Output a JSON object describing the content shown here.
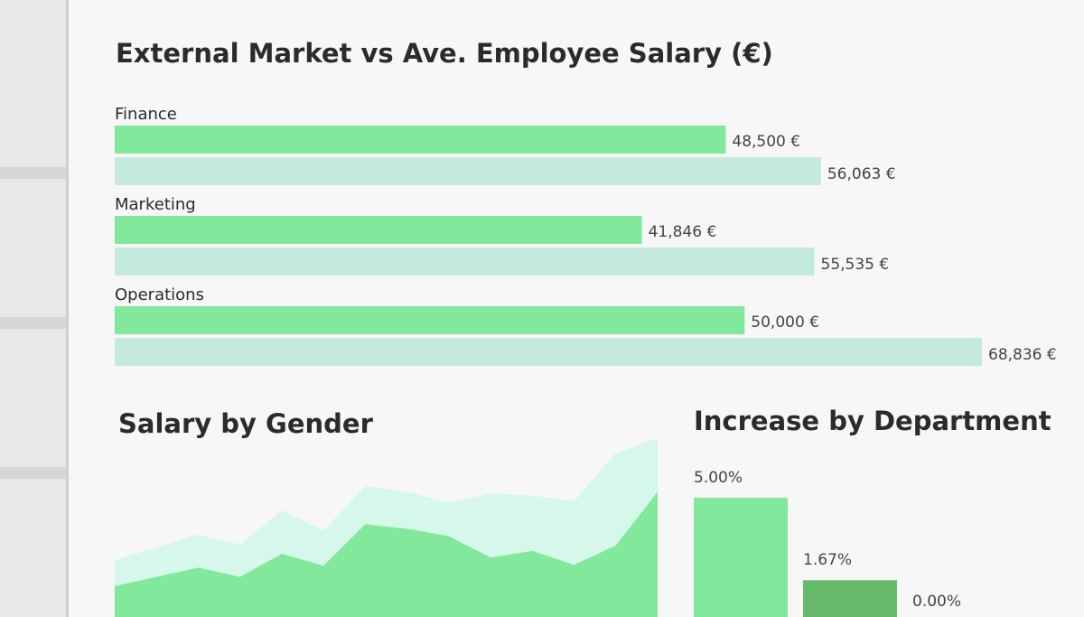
{
  "chart_data": [
    {
      "type": "bar",
      "orientation": "horizontal",
      "title": "External Market vs Ave. Employee Salary (€)",
      "categories": [
        "Finance",
        "Marketing",
        "Operations"
      ],
      "series": [
        {
          "color": "#82e89b",
          "values": [
            48500,
            41846,
            50000
          ],
          "value_labels": [
            "48,500 €",
            "41,846 €",
            "50,000 €"
          ]
        },
        {
          "color": "#c3eadc",
          "values": [
            56063,
            55535,
            68836
          ],
          "value_labels": [
            "56,063 €",
            "55,535 €",
            "68,836 €"
          ]
        }
      ]
    },
    {
      "type": "area",
      "title": "Salary by Gender",
      "categories": [
        null,
        null,
        null,
        null,
        null,
        null,
        null,
        null,
        null,
        null,
        null,
        null,
        null,
        null
      ],
      "series": [
        {
          "color": "#d5f8ea",
          "values": [
            78,
            92,
            106,
            95,
            132,
            110,
            158,
            152,
            140,
            150,
            148,
            142,
            194,
            210
          ]
        },
        {
          "color": "#82e89b",
          "values": [
            50,
            60,
            70,
            60,
            85,
            72,
            117,
            112,
            104,
            81,
            88,
            73,
            94,
            152
          ]
        }
      ]
    },
    {
      "type": "bar",
      "title": "Increase by Department",
      "categories": [
        null,
        null,
        null
      ],
      "values": [
        5,
        1.67,
        0
      ],
      "value_labels": [
        "5.00%",
        "1.67%",
        "0.00%"
      ],
      "colors": [
        "#82e89b",
        "#66bb6a",
        "#c3eadc"
      ]
    }
  ]
}
